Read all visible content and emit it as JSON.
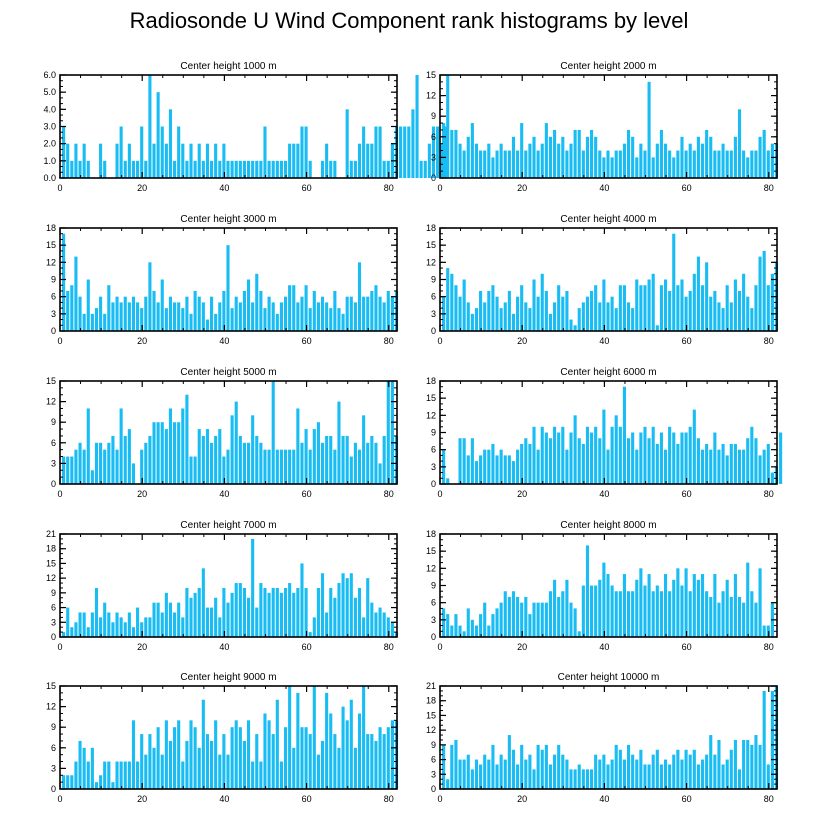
{
  "title": "Radiosonde U Wind Component rank histograms by level",
  "colors": {
    "bar": "#19bdf3",
    "axis": "#000000",
    "text": "#000000"
  },
  "chart_data": [
    {
      "type": "bar",
      "title": "Center height 1000 m",
      "xlim": [
        0,
        82
      ],
      "ylim": [
        0,
        6
      ],
      "x_ticks": [
        0,
        20,
        40,
        60,
        80
      ],
      "y_ticks": [
        0,
        1,
        2,
        3,
        4,
        5,
        6
      ],
      "y_tick_labels": [
        "0.0",
        "1.0",
        "2.0",
        "3.0",
        "4.0",
        "5.0",
        "6.0"
      ],
      "values": [
        3,
        2,
        1,
        2,
        1,
        2,
        1,
        0,
        0,
        2,
        1,
        0,
        0,
        2,
        3,
        1,
        2,
        1,
        1,
        3,
        1,
        6,
        2,
        5,
        3,
        2,
        4,
        1,
        3,
        2,
        1,
        2,
        1,
        2,
        1,
        2,
        1,
        2,
        1,
        2,
        1,
        1,
        1,
        1,
        1,
        1,
        1,
        1,
        1,
        3,
        1,
        1,
        1,
        1,
        1,
        2,
        2,
        2,
        3,
        3,
        1,
        0,
        0,
        1,
        2,
        1,
        1,
        0,
        0,
        4,
        1,
        1,
        2,
        3,
        2,
        2,
        3,
        3,
        1,
        1,
        2,
        3,
        3,
        3,
        3,
        4,
        6,
        1,
        1,
        2,
        3,
        3,
        2,
        3
      ]
    },
    {
      "type": "bar",
      "title": "Center height 2000 m",
      "xlim": [
        0,
        82
      ],
      "ylim": [
        0,
        15
      ],
      "x_ticks": [
        0,
        20,
        40,
        60,
        80
      ],
      "y_ticks": [
        0,
        3,
        6,
        9,
        12,
        15
      ],
      "y_tick_labels": [
        "0",
        "3",
        "6",
        "9",
        "12",
        "15"
      ],
      "values": [
        8,
        15,
        7,
        7,
        5,
        4,
        6,
        8,
        5,
        4,
        4,
        5,
        3,
        4,
        5,
        4,
        4,
        6,
        4,
        8,
        4,
        5,
        6,
        4,
        5,
        8,
        6,
        7,
        5,
        6,
        4,
        5,
        7,
        7,
        4,
        6,
        7,
        6,
        4,
        3,
        4,
        3,
        4,
        4,
        5,
        7,
        6,
        3,
        5,
        4,
        14,
        3,
        5,
        7,
        5,
        4,
        3,
        4,
        6,
        4,
        5,
        4,
        6,
        5,
        7,
        6,
        4,
        4,
        5,
        4,
        4,
        6,
        10,
        4,
        3,
        4,
        4,
        6,
        7,
        4,
        5,
        5
      ]
    },
    {
      "type": "bar",
      "title": "Center height 3000 m",
      "xlim": [
        0,
        82
      ],
      "ylim": [
        0,
        18
      ],
      "x_ticks": [
        0,
        20,
        40,
        60,
        80
      ],
      "y_ticks": [
        0,
        3,
        6,
        9,
        12,
        15,
        18
      ],
      "y_tick_labels": [
        "0",
        "3",
        "6",
        "9",
        "12",
        "15",
        "18"
      ],
      "values": [
        17,
        7,
        8,
        13,
        6,
        3,
        9,
        3,
        4,
        6,
        3,
        8,
        5,
        6,
        5,
        6,
        5,
        6,
        5,
        4,
        6,
        12,
        7,
        5,
        9,
        4,
        6,
        5,
        5,
        4,
        6,
        3,
        7,
        6,
        5,
        2,
        6,
        3,
        5,
        7,
        15,
        4,
        6,
        5,
        7,
        9,
        5,
        10,
        7,
        4,
        6,
        5,
        3,
        5,
        6,
        8,
        8,
        5,
        6,
        8,
        4,
        7,
        5,
        6,
        5,
        4,
        7,
        4,
        3,
        6,
        6,
        5,
        12,
        6,
        6,
        7,
        8,
        6,
        5,
        7,
        6,
        7
      ]
    },
    {
      "type": "bar",
      "title": "Center height 4000 m",
      "xlim": [
        0,
        82
      ],
      "ylim": [
        0,
        18
      ],
      "x_ticks": [
        0,
        20,
        40,
        60,
        80
      ],
      "y_ticks": [
        0,
        3,
        6,
        9,
        12,
        15,
        18
      ],
      "y_tick_labels": [
        "0",
        "3",
        "6",
        "9",
        "12",
        "15",
        "18"
      ],
      "values": [
        6,
        11,
        10,
        8,
        6,
        9,
        5,
        3,
        4,
        7,
        5,
        7,
        8,
        6,
        4,
        5,
        7,
        3,
        6,
        8,
        5,
        4,
        9,
        6,
        10,
        7,
        3,
        5,
        8,
        6,
        7,
        2,
        1,
        4,
        5,
        6,
        7,
        8,
        5,
        9,
        5,
        6,
        4,
        8,
        8,
        5,
        4,
        9,
        8,
        8,
        9,
        10,
        1,
        8,
        9,
        7,
        17,
        8,
        9,
        6,
        7,
        10,
        13,
        8,
        12,
        6,
        7,
        5,
        4,
        8,
        5,
        9,
        7,
        10,
        6,
        4,
        8,
        13,
        14,
        8,
        10,
        12
      ]
    },
    {
      "type": "bar",
      "title": "Center height 5000 m",
      "xlim": [
        0,
        82
      ],
      "ylim": [
        0,
        15
      ],
      "x_ticks": [
        0,
        20,
        40,
        60,
        80
      ],
      "y_ticks": [
        0,
        3,
        6,
        9,
        12,
        15
      ],
      "y_tick_labels": [
        "0",
        "3",
        "6",
        "9",
        "12",
        "15"
      ],
      "values": [
        4,
        4,
        4,
        5,
        6,
        5,
        11,
        2,
        6,
        6,
        5,
        6,
        7,
        5,
        11,
        7,
        8,
        3,
        0,
        5,
        6,
        7,
        9,
        9,
        9,
        8,
        11,
        9,
        9,
        11,
        13,
        4,
        4,
        8,
        7,
        8,
        6,
        7,
        8,
        4,
        5,
        10,
        12,
        7,
        6,
        6,
        10,
        7,
        6,
        5,
        5,
        15,
        5,
        5,
        5,
        5,
        5,
        11,
        6,
        8,
        5,
        8,
        9,
        6,
        7,
        7,
        5,
        12,
        7,
        7,
        4,
        6,
        5,
        10,
        6,
        7,
        6,
        3,
        7,
        15,
        15,
        7
      ]
    },
    {
      "type": "bar",
      "title": "Center height 6000 m",
      "xlim": [
        0,
        82
      ],
      "ylim": [
        0,
        18
      ],
      "x_ticks": [
        0,
        20,
        40,
        60,
        80
      ],
      "y_ticks": [
        0,
        3,
        6,
        9,
        12,
        15,
        18
      ],
      "y_tick_labels": [
        "0",
        "3",
        "6",
        "9",
        "12",
        "15",
        "18"
      ],
      "values": [
        6,
        1,
        0,
        0,
        8,
        8,
        5,
        8,
        4,
        5,
        6,
        6,
        7,
        5,
        6,
        5,
        5,
        4,
        6,
        7,
        8,
        7,
        10,
        6,
        10,
        9,
        8,
        10,
        9,
        10,
        6,
        9,
        12,
        8,
        7,
        10,
        9,
        10,
        8,
        13,
        6,
        10,
        12,
        10,
        17,
        8,
        9,
        6,
        9,
        10,
        8,
        10,
        7,
        9,
        6,
        10,
        9,
        7,
        9,
        9,
        10,
        13,
        8,
        6,
        7,
        6,
        9,
        6,
        7,
        5,
        7,
        7,
        6,
        6,
        8,
        10,
        8,
        5,
        6,
        7,
        2,
        3,
        9
      ]
    },
    {
      "type": "bar",
      "title": "Center height 7000 m",
      "xlim": [
        0,
        82
      ],
      "ylim": [
        0,
        21
      ],
      "x_ticks": [
        0,
        20,
        40,
        60,
        80
      ],
      "y_ticks": [
        0,
        3,
        6,
        9,
        12,
        15,
        18,
        21
      ],
      "y_tick_labels": [
        "0",
        "3",
        "6",
        "9",
        "12",
        "15",
        "18",
        "21"
      ],
      "values": [
        1,
        6,
        2,
        3,
        5,
        5,
        2,
        5,
        10,
        4,
        7,
        5,
        3,
        5,
        4,
        3,
        5,
        2,
        6,
        3,
        4,
        4,
        7,
        7,
        5,
        9,
        7,
        5,
        7,
        4,
        10,
        8,
        9,
        10,
        14,
        6,
        6,
        8,
        4,
        10,
        7,
        9,
        11,
        11,
        10,
        8,
        20,
        6,
        11,
        10,
        9,
        10,
        10,
        9,
        10,
        11,
        9,
        10,
        15,
        10,
        1,
        4,
        10,
        13,
        5,
        10,
        8,
        11,
        13,
        12,
        13,
        8,
        10,
        4,
        12,
        7,
        5,
        6,
        5,
        4,
        3,
        1
      ]
    },
    {
      "type": "bar",
      "title": "Center height 8000 m",
      "xlim": [
        0,
        82
      ],
      "ylim": [
        0,
        18
      ],
      "x_ticks": [
        0,
        20,
        40,
        60,
        80
      ],
      "y_ticks": [
        0,
        3,
        6,
        9,
        12,
        15,
        18
      ],
      "y_tick_labels": [
        "0",
        "3",
        "6",
        "9",
        "12",
        "15",
        "18"
      ],
      "values": [
        5,
        4,
        2,
        4,
        2,
        1,
        5,
        3,
        2,
        4,
        6,
        2,
        4,
        5,
        6,
        8,
        7,
        8,
        7,
        6,
        7,
        4,
        6,
        6,
        6,
        6,
        8,
        10,
        7,
        8,
        10,
        6,
        5,
        1,
        9,
        16,
        9,
        9,
        10,
        13,
        11,
        9,
        8,
        8,
        11,
        8,
        8,
        10,
        12,
        9,
        11,
        8,
        9,
        8,
        11,
        8,
        10,
        12,
        9,
        12,
        8,
        11,
        10,
        11,
        8,
        7,
        11,
        6,
        8,
        10,
        7,
        11,
        7,
        6,
        13,
        8,
        6,
        12,
        2,
        2,
        6
      ]
    },
    {
      "type": "bar",
      "title": "Center height 9000 m",
      "xlim": [
        0,
        82
      ],
      "ylim": [
        0,
        15
      ],
      "x_ticks": [
        0,
        20,
        40,
        60,
        80
      ],
      "y_ticks": [
        0,
        3,
        6,
        9,
        12,
        15
      ],
      "y_tick_labels": [
        "0",
        "3",
        "6",
        "9",
        "12",
        "15"
      ],
      "values": [
        2,
        2,
        2,
        4,
        7,
        6,
        4,
        6,
        1,
        2,
        4,
        4,
        1,
        4,
        4,
        4,
        4,
        10,
        4,
        8,
        5,
        8,
        6,
        9,
        5,
        10,
        7,
        9,
        10,
        4,
        7,
        10,
        9,
        6,
        13,
        8,
        7,
        10,
        5,
        8,
        5,
        9,
        10,
        9,
        7,
        10,
        4,
        8,
        4,
        11,
        10,
        8,
        13,
        4,
        9,
        15,
        6,
        14,
        9,
        9,
        8,
        15,
        5,
        7,
        14,
        11,
        8,
        6,
        12,
        10,
        13,
        6,
        11,
        15,
        8,
        8,
        7,
        9,
        8,
        9,
        10,
        10
      ]
    },
    {
      "type": "bar",
      "title": "Center height 10000 m",
      "xlim": [
        0,
        82
      ],
      "ylim": [
        0,
        21
      ],
      "x_ticks": [
        0,
        20,
        40,
        60,
        80
      ],
      "y_ticks": [
        0,
        3,
        6,
        9,
        12,
        15,
        18,
        21
      ],
      "y_tick_labels": [
        "0",
        "3",
        "6",
        "9",
        "12",
        "15",
        "18",
        "21"
      ],
      "values": [
        9,
        2,
        9,
        10,
        6,
        6,
        7,
        4,
        6,
        5,
        7,
        6,
        9,
        5,
        7,
        6,
        11,
        8,
        5,
        9,
        6,
        7,
        4,
        9,
        8,
        9,
        5,
        7,
        9,
        7,
        6,
        4,
        4,
        5,
        4,
        4,
        4,
        7,
        6,
        7,
        5,
        6,
        9,
        8,
        6,
        9,
        7,
        6,
        8,
        5,
        5,
        7,
        8,
        5,
        6,
        5,
        7,
        8,
        6,
        8,
        7,
        8,
        5,
        6,
        7,
        11,
        7,
        10,
        5,
        6,
        8,
        10,
        4,
        10,
        10,
        9,
        11,
        9,
        20,
        5,
        20,
        21
      ]
    }
  ]
}
